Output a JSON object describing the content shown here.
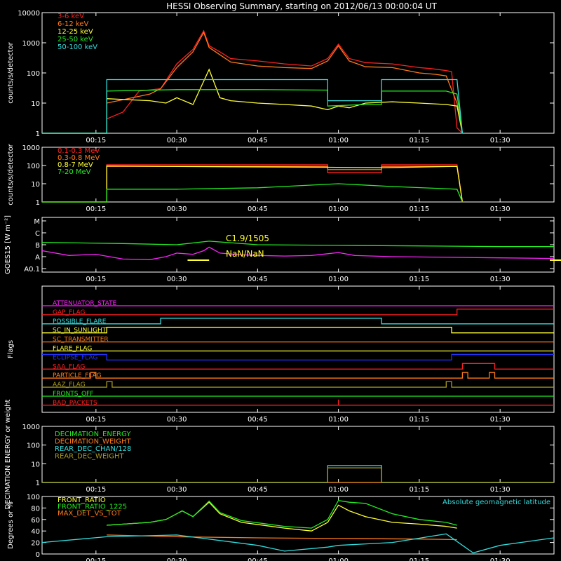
{
  "title": "HESSI Observing Summary, starting on 2012/06/13 00:00:04 UT",
  "x_ticks": [
    "00:15",
    "00:30",
    "00:45",
    "01:00",
    "01:15",
    "01:30"
  ],
  "colors": {
    "axis": "#ffffff",
    "red": "#ff2020",
    "orange": "#ff7a1a",
    "yellow": "#ffff33",
    "green": "#22ee22",
    "cyan": "#33dddd",
    "magenta": "#ff22ff",
    "blue": "#2233ff",
    "olive": "#a89a20"
  },
  "chart_data": [
    {
      "type": "line",
      "ylabel": "counts/s/detector",
      "y_scale": "log",
      "ylim": [
        1,
        10000
      ],
      "y_ticks": [
        "1",
        "10",
        "100",
        "1000",
        "10000"
      ],
      "xlim": [
        "00:05",
        "01:40"
      ],
      "legend_position": "top-left",
      "series": [
        {
          "name": "3-6 keV",
          "color": "#ff2020",
          "x": [
            "00:05",
            "00:17",
            "00:17",
            "00:20",
            "00:23",
            "00:27",
            "00:30",
            "00:33",
            "00:35",
            "00:36",
            "00:38",
            "00:40",
            "00:45",
            "00:50",
            "00:55",
            "00:58",
            "01:00",
            "01:02",
            "01:05",
            "01:10",
            "01:15",
            "01:17",
            "01:20",
            "01:21",
            "01:22",
            "01:23"
          ],
          "values": [
            1,
            1,
            3,
            5,
            25,
            30,
            200,
            600,
            2500,
            800,
            500,
            300,
            250,
            200,
            170,
            300,
            900,
            300,
            220,
            200,
            150,
            140,
            120,
            110,
            1.5,
            1
          ]
        },
        {
          "name": "6-12 keV",
          "color": "#ff7a1a",
          "x": [
            "00:05",
            "00:17",
            "00:17",
            "00:25",
            "00:27",
            "00:30",
            "00:33",
            "00:35",
            "00:36",
            "00:38",
            "00:40",
            "00:45",
            "00:50",
            "00:55",
            "00:58",
            "01:00",
            "01:02",
            "01:05",
            "01:10",
            "01:15",
            "01:18",
            "01:20",
            "01:22",
            "01:23"
          ],
          "values": [
            1,
            1,
            10,
            20,
            30,
            150,
            500,
            2200,
            700,
            400,
            230,
            170,
            150,
            140,
            250,
            800,
            250,
            160,
            150,
            100,
            90,
            80,
            10,
            1
          ]
        },
        {
          "name": "12-25 keV",
          "color": "#ffff33",
          "x": [
            "00:05",
            "00:17",
            "00:17",
            "00:25",
            "00:28",
            "00:30",
            "00:33",
            "00:36",
            "00:38",
            "00:40",
            "00:45",
            "00:50",
            "00:55",
            "00:58",
            "01:00",
            "01:02",
            "01:05",
            "01:10",
            "01:15",
            "01:20",
            "01:22",
            "01:23"
          ],
          "values": [
            1,
            1,
            14,
            12,
            10,
            15,
            9,
            130,
            15,
            12,
            10,
            9,
            8,
            6,
            8,
            7,
            10,
            11,
            10,
            9,
            8,
            1
          ]
        },
        {
          "name": "25-50 keV",
          "color": "#22ee22",
          "x": [
            "00:05",
            "00:17",
            "00:17",
            "00:30",
            "00:45",
            "00:58",
            "00:58",
            "01:05",
            "01:08",
            "01:08",
            "01:20",
            "01:22",
            "01:23"
          ],
          "values": [
            1,
            1,
            25,
            28,
            28,
            27,
            8,
            9,
            9,
            25,
            25,
            20,
            1
          ]
        },
        {
          "name": "50-100 keV",
          "color": "#33dddd",
          "x": [
            "00:05",
            "00:17",
            "00:17",
            "00:58",
            "00:58",
            "01:08",
            "01:08",
            "01:22",
            "01:23"
          ],
          "values": [
            1,
            1,
            60,
            60,
            12,
            12,
            60,
            60,
            1
          ]
        }
      ]
    },
    {
      "type": "line",
      "ylabel": "counts/s/detector",
      "y_scale": "log",
      "ylim": [
        1,
        1000
      ],
      "y_ticks": [
        "1",
        "10",
        "100",
        "1000"
      ],
      "xlim": [
        "00:05",
        "01:40"
      ],
      "legend_position": "top-left",
      "series": [
        {
          "name": "0.1-0.3 MeV",
          "color": "#ff2020",
          "x": [
            "00:05",
            "00:17",
            "00:17",
            "00:58",
            "00:58",
            "01:08",
            "01:08",
            "01:22",
            "01:23"
          ],
          "values": [
            1,
            1,
            110,
            110,
            40,
            40,
            110,
            110,
            1
          ]
        },
        {
          "name": "0.3-0.8 MeV",
          "color": "#ff7a1a",
          "x": [
            "00:05",
            "00:17",
            "00:17",
            "00:58",
            "00:58",
            "01:08",
            "01:08",
            "01:22",
            "01:23"
          ],
          "values": [
            1,
            1,
            90,
            90,
            60,
            60,
            90,
            90,
            1
          ]
        },
        {
          "name": "0.8-7 MeV",
          "color": "#ffff33",
          "x": [
            "00:05",
            "00:17",
            "00:17",
            "00:40",
            "00:58",
            "01:08",
            "01:22",
            "01:23"
          ],
          "values": [
            1,
            1,
            95,
            85,
            80,
            75,
            90,
            1
          ]
        },
        {
          "name": "7-20 MeV",
          "color": "#22ee22",
          "x": [
            "00:05",
            "00:17",
            "00:17",
            "00:30",
            "00:45",
            "01:00",
            "01:10",
            "01:22",
            "01:23"
          ],
          "values": [
            1,
            1,
            5,
            5,
            6,
            10,
            7,
            5,
            1
          ]
        }
      ]
    },
    {
      "type": "line",
      "ylabel": "GOES15 [W m⁻²]",
      "y_ticks": [
        "A0.1",
        "A",
        "B",
        "C",
        "M"
      ],
      "xlim": [
        "00:05",
        "01:40"
      ],
      "annotations": [
        "C1.9/1505",
        "NaN/NaN"
      ],
      "series": [
        {
          "color": "#22ee22",
          "x": [
            "00:05",
            "00:20",
            "00:30",
            "00:36",
            "00:45",
            "01:00",
            "01:15",
            "01:30",
            "01:40"
          ],
          "values": [
            2.2,
            2.1,
            2.0,
            2.3,
            2.0,
            1.95,
            1.9,
            1.85,
            1.85
          ]
        },
        {
          "color": "#ff22ff",
          "x": [
            "00:05",
            "00:10",
            "00:15",
            "00:20",
            "00:25",
            "00:28",
            "00:30",
            "00:33",
            "00:35",
            "00:36",
            "00:38",
            "00:42",
            "00:45",
            "00:50",
            "00:55",
            "00:58",
            "01:00",
            "01:03",
            "01:10",
            "01:20",
            "01:30",
            "01:40"
          ],
          "values": [
            1.5,
            1.1,
            1.2,
            0.8,
            0.75,
            1.0,
            1.3,
            1.2,
            1.5,
            1.8,
            1.3,
            1.15,
            1.1,
            1.05,
            1.1,
            1.25,
            1.35,
            1.1,
            1.0,
            0.95,
            0.9,
            0.85
          ]
        }
      ]
    },
    {
      "type": "line",
      "ylabel": "Flags",
      "xlim": [
        "00:05",
        "01:40"
      ],
      "series": [
        {
          "name": "ATTENUATOR_STATE",
          "color": "#ff22ff",
          "transitions": [
            [
              "00:05",
              0
            ]
          ]
        },
        {
          "name": "GAP_FLAG",
          "color": "#ff2020",
          "transitions": [
            [
              "00:05",
              0
            ],
            [
              "01:22",
              1
            ]
          ]
        },
        {
          "name": "POSSIBLE_FLARE",
          "color": "#33dddd",
          "transitions": [
            [
              "00:05",
              0
            ],
            [
              "00:27",
              1
            ],
            [
              "01:08",
              0
            ]
          ]
        },
        {
          "name": "SC_IN_SUNLIGHT",
          "color": "#ffff33",
          "transitions": [
            [
              "00:05",
              0
            ],
            [
              "00:17",
              1
            ],
            [
              "01:21",
              0
            ]
          ]
        },
        {
          "name": "SC_TRANSMITTER",
          "color": "#ff7a1a",
          "transitions": [
            [
              "00:05",
              0
            ]
          ]
        },
        {
          "name": "FLARE_FLAG",
          "color": "#ffff33",
          "transitions": [
            [
              "00:05",
              0
            ]
          ]
        },
        {
          "name": "ECLIPSE_FLAG",
          "color": "#2233ff",
          "transitions": [
            [
              "00:05",
              1
            ],
            [
              "00:17",
              0
            ],
            [
              "01:21",
              1
            ]
          ]
        },
        {
          "name": "SAA_FLAG",
          "color": "#ff2020",
          "transitions": [
            [
              "00:05",
              0
            ],
            [
              "01:23",
              1
            ],
            [
              "01:29",
              0
            ]
          ]
        },
        {
          "name": "PARTICLE_FLAG",
          "color": "#ff7a1a",
          "transitions": [
            [
              "00:05",
              0
            ],
            [
              "00:14",
              1
            ],
            [
              "00:15",
              0
            ],
            [
              "01:23",
              1
            ],
            [
              "01:24",
              0
            ],
            [
              "01:28",
              1
            ],
            [
              "01:29",
              0
            ]
          ]
        },
        {
          "name": "AAZ_FLAG",
          "color": "#a89a20",
          "transitions": [
            [
              "00:05",
              0
            ],
            [
              "00:17",
              1
            ],
            [
              "00:18",
              0
            ],
            [
              "01:20",
              1
            ],
            [
              "01:21",
              0
            ]
          ]
        },
        {
          "name": "FRONTS_OFF",
          "color": "#22ee22",
          "transitions": [
            [
              "00:05",
              0
            ]
          ]
        },
        {
          "name": "BAD_PACKETS",
          "color": "#ff2020",
          "transitions": [
            [
              "00:05",
              0
            ],
            [
              "01:00",
              1
            ],
            [
              "01:00",
              0
            ]
          ]
        }
      ]
    },
    {
      "type": "line",
      "ylabel": "DECIMATION ENERGY or weight",
      "y_scale": "log",
      "ylim": [
        1,
        1000
      ],
      "y_ticks": [
        "1",
        "10",
        "100",
        "1000"
      ],
      "xlim": [
        "00:05",
        "01:40"
      ],
      "legend_position": "top-left",
      "series": [
        {
          "name": "DECIMATION_ENERGY",
          "color": "#22ee22",
          "x": [
            "00:05",
            "01:40"
          ],
          "values": [
            1,
            1
          ]
        },
        {
          "name": "DECIMATION_WEIGHT",
          "color": "#ff7a1a",
          "x": [
            "00:05",
            "01:40"
          ],
          "values": [
            1,
            1
          ]
        },
        {
          "name": "REAR_DEC_CHAN/128",
          "color": "#33dddd",
          "x": [
            "00:05",
            "00:58",
            "00:58",
            "01:08",
            "01:08",
            "01:40"
          ],
          "values": [
            1,
            1,
            8,
            8,
            1,
            1
          ]
        },
        {
          "name": "REAR_DEC_WEIGHT",
          "color": "#a89a20",
          "x": [
            "00:05",
            "00:58",
            "00:58",
            "01:08",
            "01:08",
            "01:40"
          ],
          "values": [
            1,
            1,
            6,
            6,
            1,
            1
          ]
        }
      ]
    },
    {
      "type": "line",
      "ylabel": "Degrees or %",
      "ylim": [
        0,
        100
      ],
      "y_ticks": [
        "0",
        "20",
        "40",
        "60",
        "80",
        "100"
      ],
      "xlim": [
        "00:05",
        "01:40"
      ],
      "legend_position": "top-left",
      "annotations": [
        "Absolute geomagnetic latitude"
      ],
      "series": [
        {
          "name": "FRONT_RATIO",
          "color": "#ffff33",
          "x": [
            "00:17",
            "00:25",
            "00:28",
            "00:31",
            "00:33",
            "00:36",
            "00:38",
            "00:42",
            "00:50",
            "00:55",
            "00:58",
            "01:00",
            "01:02",
            "01:05",
            "01:10",
            "01:15",
            "01:20",
            "01:22"
          ],
          "values": [
            50,
            55,
            60,
            75,
            65,
            90,
            70,
            55,
            45,
            40,
            55,
            85,
            75,
            65,
            55,
            52,
            48,
            45
          ]
        },
        {
          "name": "FRONT_RATIO_1225",
          "color": "#22ee22",
          "x": [
            "00:17",
            "00:25",
            "00:28",
            "00:31",
            "00:33",
            "00:36",
            "00:38",
            "00:42",
            "00:50",
            "00:55",
            "00:58",
            "01:00",
            "01:02",
            "01:05",
            "01:10",
            "01:15",
            "01:20",
            "01:22"
          ],
          "values": [
            50,
            55,
            60,
            75,
            65,
            92,
            72,
            58,
            48,
            45,
            60,
            93,
            90,
            88,
            70,
            60,
            55,
            50
          ]
        },
        {
          "name": "MAX_DET_VS_TOT",
          "color": "#ff7a1a",
          "x": [
            "00:17",
            "00:30",
            "00:45",
            "01:00",
            "01:15",
            "01:22"
          ],
          "values": [
            33,
            30,
            28,
            27,
            26,
            25
          ]
        },
        {
          "name": "Absolute geomagnetic latitude",
          "color": "#33dddd",
          "x": [
            "00:05",
            "00:17",
            "00:30",
            "00:45",
            "00:50",
            "00:58",
            "01:00",
            "01:10",
            "01:20",
            "01:25",
            "01:30",
            "01:40"
          ],
          "values": [
            20,
            30,
            33,
            15,
            5,
            12,
            15,
            20,
            35,
            2,
            15,
            28
          ]
        }
      ]
    }
  ]
}
